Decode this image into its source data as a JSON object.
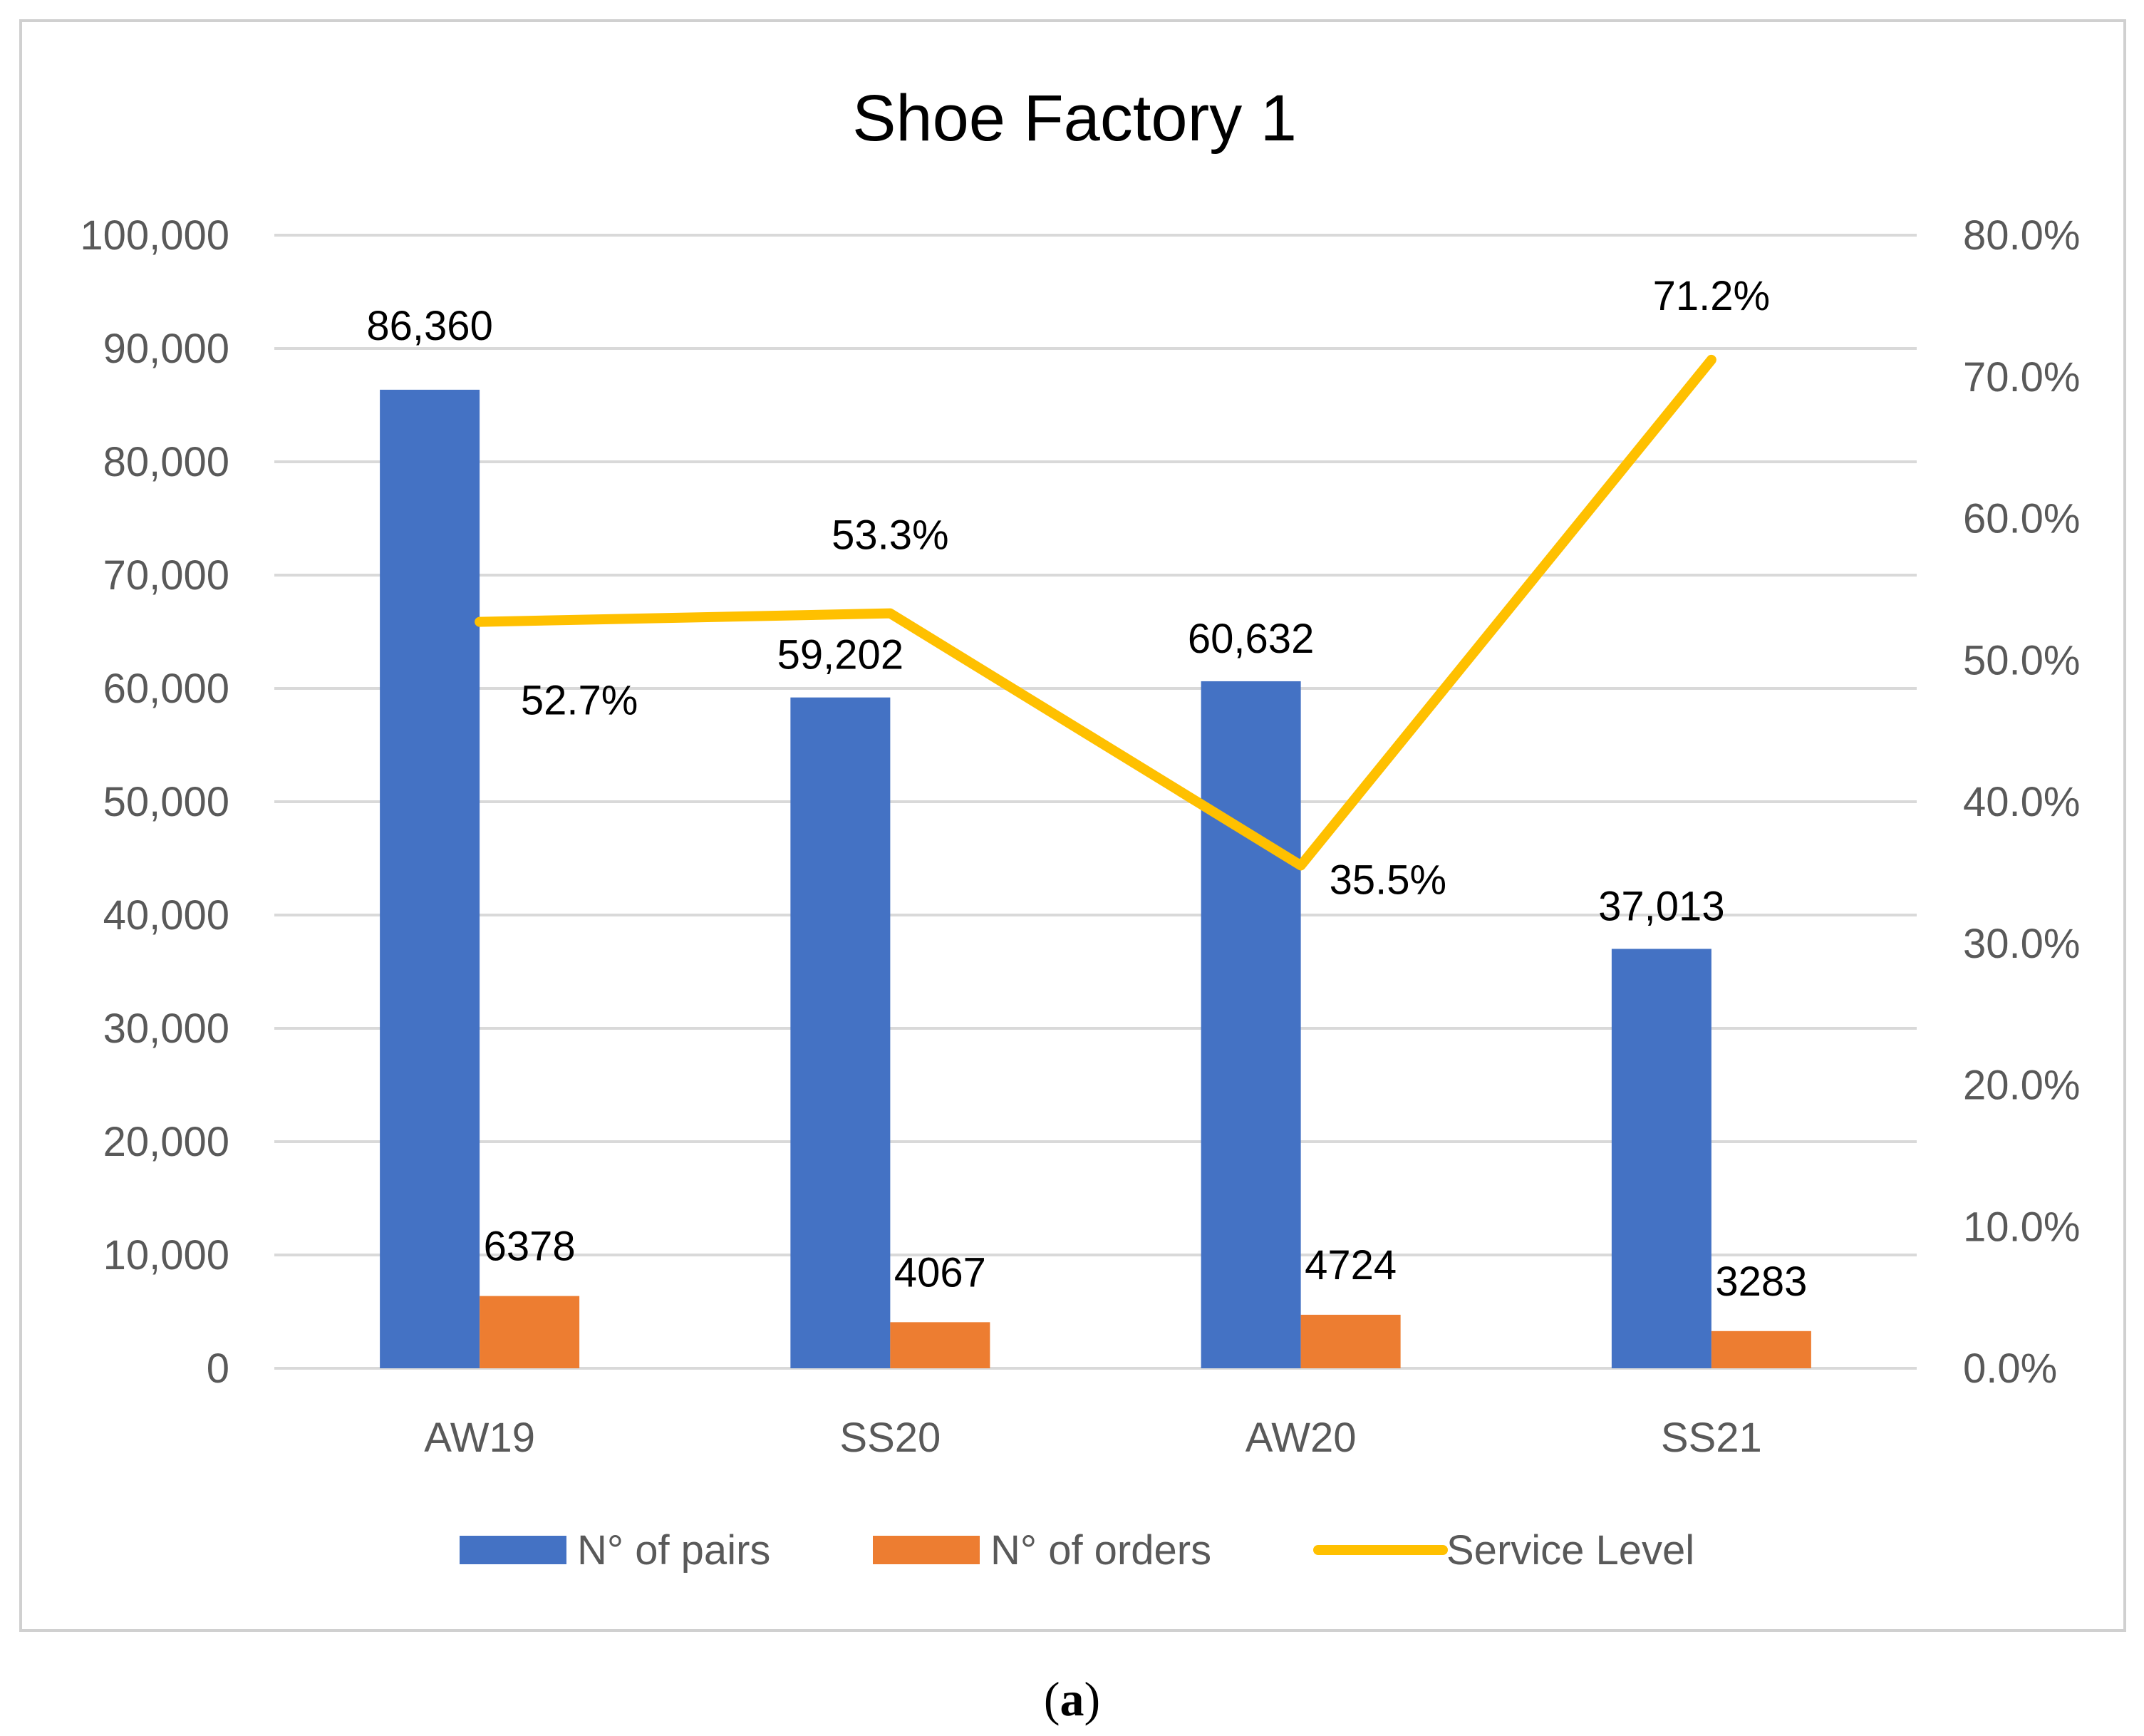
{
  "chart_data": {
    "type": "bar",
    "title": "Shoe Factory 1",
    "categories": [
      "AW19",
      "SS20",
      "AW20",
      "SS21"
    ],
    "y_axis": {
      "min": 0,
      "max": 100000,
      "step": 10000,
      "ticks": [
        "0",
        "10,000",
        "20,000",
        "30,000",
        "40,000",
        "50,000",
        "60,000",
        "70,000",
        "80,000",
        "90,000",
        "100,000"
      ]
    },
    "y2_axis": {
      "min": 0,
      "max": 0.8,
      "step": 0.1,
      "ticks": [
        "0.0%",
        "10.0%",
        "20.0%",
        "30.0%",
        "40.0%",
        "50.0%",
        "60.0%",
        "70.0%",
        "80.0%"
      ]
    },
    "grid": true,
    "legend_position": "bottom",
    "series": [
      {
        "name": "N° of pairs",
        "type": "bar",
        "axis": "left",
        "color": "#4472C4",
        "values": [
          86360,
          59202,
          60632,
          37013
        ],
        "labels": [
          "86,360",
          "59,202",
          "60,632",
          "37,013"
        ]
      },
      {
        "name": "N° of orders",
        "type": "bar",
        "axis": "left",
        "color": "#ED7D31",
        "values": [
          6378,
          4067,
          4724,
          3283
        ],
        "labels": [
          "6378",
          "4067",
          "4724",
          "3283"
        ]
      },
      {
        "name": "Service Level",
        "type": "line",
        "axis": "right",
        "color": "#FFC000",
        "values": [
          0.527,
          0.533,
          0.355,
          0.712
        ],
        "labels": [
          "52.7%",
          "53.3%",
          "35.5%",
          "71.2%"
        ]
      }
    ]
  },
  "caption": {
    "open": "(",
    "letter": "a",
    "close": ")"
  }
}
